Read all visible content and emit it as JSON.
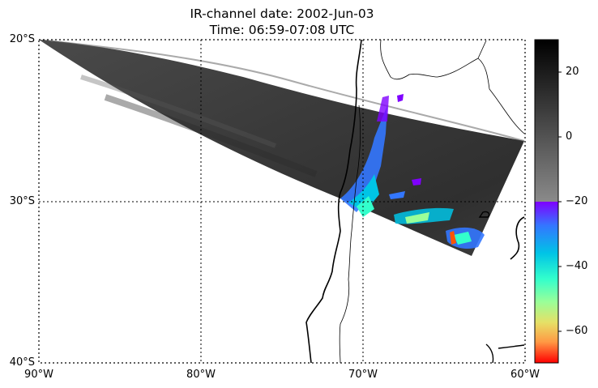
{
  "title": {
    "line1": "IR-channel date: 2002-Jun-03",
    "line2": "Time: 06:59-07:08 UTC"
  },
  "map": {
    "extent": {
      "lon_min": -90,
      "lon_max": -60,
      "lat_min": -40,
      "lat_max": -20
    },
    "gridlines": {
      "lons": [
        -80,
        -70
      ],
      "lats": [
        -30
      ],
      "style": "dotted"
    },
    "lat_labels": [
      "20°S",
      "30°S",
      "40°S"
    ],
    "lon_labels": [
      "90°W",
      "80°W",
      "70°W",
      "60°W"
    ],
    "swath": {
      "description_free": true,
      "corners_lonlat": [
        [
          -90,
          -20
        ],
        [
          -60,
          -26.2
        ],
        [
          -62.3,
          -33.3
        ],
        [
          -71.4,
          -30.2
        ]
      ]
    }
  },
  "colorbar": {
    "ticks": [
      "20",
      "0",
      "−20",
      "−40",
      "−60"
    ],
    "tick_values": [
      20,
      0,
      -20,
      -40,
      -60
    ],
    "range": [
      -70,
      30
    ],
    "gray_range": [
      -20,
      30
    ],
    "color_range": [
      -70,
      -20
    ],
    "gray_top_color": "#000000",
    "gray_bottom_color": "#8a8a8a",
    "color_stops": [
      "#7f00ff",
      "#3377ff",
      "#00c4e6",
      "#33ffcc",
      "#99ff99",
      "#e6e066",
      "#ff9944",
      "#ff0000"
    ]
  }
}
